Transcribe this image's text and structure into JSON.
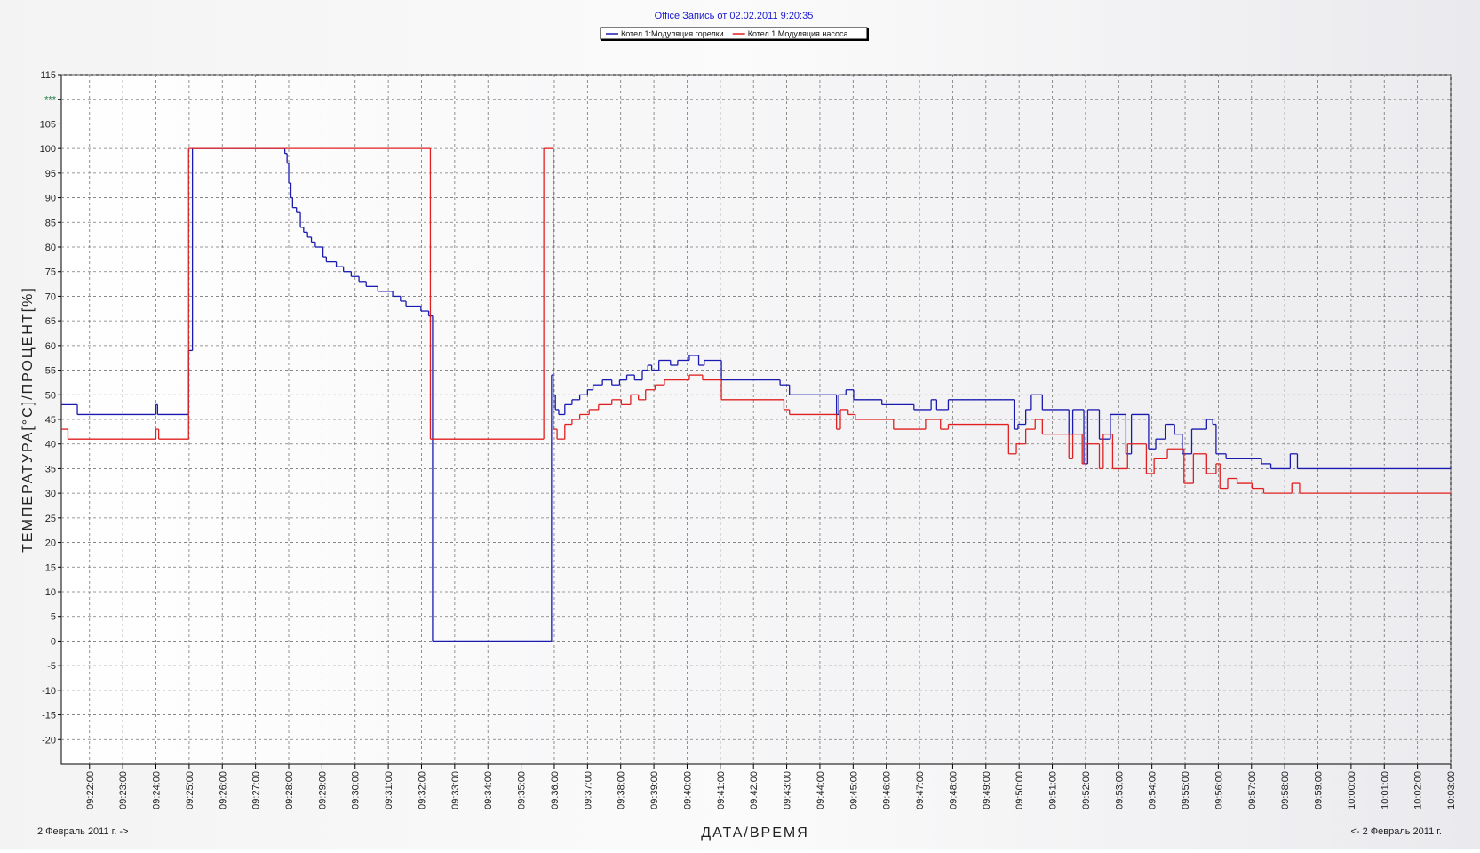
{
  "chart_data": {
    "type": "step-line",
    "title": "Office Запись от 02.02.2011 9:20:35",
    "y_label": "ТЕМПЕРАТУРА[°C]/ПРОЦЕНТ[%]",
    "x_label": "ДАТА/ВРЕМЯ",
    "date_left": "2 Февраль 2011 г. ->",
    "date_right": "<- 2 Февраль 2011 г.",
    "grid": true,
    "legend": "top",
    "xlim": [
      "09:21:09",
      "10:03:00"
    ],
    "xticks": [
      "09:22:00",
      "09:23:00",
      "09:24:00",
      "09:25:00",
      "09:26:00",
      "09:27:00",
      "09:28:00",
      "09:29:00",
      "09:30:00",
      "09:31:00",
      "09:32:00",
      "09:33:00",
      "09:34:00",
      "09:35:00",
      "09:36:00",
      "09:37:00",
      "09:38:00",
      "09:39:00",
      "09:40:00",
      "09:41:00",
      "09:42:00",
      "09:43:00",
      "09:44:00",
      "09:45:00",
      "09:46:00",
      "09:47:00",
      "09:48:00",
      "09:49:00",
      "09:50:00",
      "09:51:00",
      "09:52:00",
      "09:53:00",
      "09:54:00",
      "09:55:00",
      "09:56:00",
      "09:57:00",
      "09:58:00",
      "09:59:00",
      "10:00:00",
      "10:01:00",
      "10:02:00",
      "10:03:00"
    ],
    "ylim": [
      -25,
      115
    ],
    "yticks": [
      -20,
      -15,
      -10,
      -5,
      0,
      5,
      10,
      15,
      20,
      25,
      30,
      35,
      40,
      45,
      50,
      55,
      60,
      65,
      70,
      75,
      80,
      85,
      90,
      95,
      100,
      105,
      {
        "value": 110,
        "label": "***"
      },
      115
    ],
    "series": [
      {
        "name": "Котел 1:Модуляция горелки",
        "color": "#1a1ab0",
        "x": [
          "09:21:09",
          "09:21:38",
          "09:24:00",
          "09:24:03",
          "09:24:59",
          "09:25:06",
          "09:27:53",
          "09:27:57",
          "09:28:00",
          "09:28:04",
          "09:28:07",
          "09:28:14",
          "09:28:21",
          "09:28:27",
          "09:28:34",
          "09:28:41",
          "09:28:48",
          "09:29:02",
          "09:29:08",
          "09:29:26",
          "09:29:39",
          "09:29:53",
          "09:30:07",
          "09:30:20",
          "09:30:41",
          "09:31:08",
          "09:31:22",
          "09:31:32",
          "09:31:59",
          "09:32:13",
          "09:32:20",
          "09:35:55",
          "09:35:58",
          "09:36:02",
          "09:36:08",
          "09:36:19",
          "09:36:32",
          "09:36:46",
          "09:37:00",
          "09:37:10",
          "09:37:27",
          "09:37:44",
          "09:37:58",
          "09:38:11",
          "09:38:25",
          "09:38:39",
          "09:38:49",
          "09:38:56",
          "09:39:09",
          "09:39:30",
          "09:39:43",
          "09:40:04",
          "09:40:21",
          "09:40:31",
          "09:41:02",
          "09:42:48",
          "09:43:05",
          "09:44:30",
          "09:44:34",
          "09:44:47",
          "09:45:01",
          "09:45:52",
          "09:46:50",
          "09:47:21",
          "09:47:31",
          "09:47:52",
          "09:49:51",
          "09:49:58",
          "09:50:12",
          "09:50:22",
          "09:50:42",
          "09:51:30",
          "09:51:37",
          "09:51:57",
          "09:52:04",
          "09:52:25",
          "09:52:45",
          "09:53:13",
          "09:53:23",
          "09:53:54",
          "09:54:07",
          "09:54:24",
          "09:54:41",
          "09:54:55",
          "09:55:12",
          "09:55:39",
          "09:55:50",
          "09:55:56",
          "09:56:14",
          "09:57:18",
          "09:57:35",
          "09:58:10",
          "09:58:23",
          "10:03:00"
        ],
        "values": [
          48,
          46,
          48,
          46,
          59,
          100,
          99,
          97,
          93,
          90,
          88,
          87,
          84,
          83,
          82,
          81,
          80,
          78,
          77,
          76,
          75,
          74,
          73,
          72,
          71,
          70,
          69,
          68,
          67,
          66,
          0,
          54,
          50,
          47,
          46,
          48,
          49,
          50,
          51,
          52,
          53,
          52,
          53,
          54,
          53,
          55,
          56,
          55,
          57,
          56,
          57,
          58,
          56,
          57,
          53,
          52,
          50,
          46,
          50,
          51,
          49,
          48,
          47,
          49,
          47,
          49,
          43,
          44,
          47,
          50,
          47,
          42,
          47,
          36,
          47,
          41,
          46,
          38,
          46,
          39,
          41,
          44,
          42,
          38,
          43,
          45,
          44,
          38,
          37,
          36,
          35,
          38,
          35,
          35
        ]
      },
      {
        "name": "Котел 1 Модуляция насоса",
        "color": "#e02020",
        "x": [
          "09:21:09",
          "09:21:21",
          "09:24:00",
          "09:24:05",
          "09:24:59",
          "09:32:16",
          "09:35:41",
          "09:35:58",
          "09:36:05",
          "09:36:19",
          "09:36:32",
          "09:36:46",
          "09:37:03",
          "09:37:20",
          "09:37:44",
          "09:38:01",
          "09:38:18",
          "09:38:32",
          "09:38:45",
          "09:39:02",
          "09:39:19",
          "09:40:04",
          "09:40:28",
          "09:41:02",
          "09:42:55",
          "09:43:05",
          "09:44:30",
          "09:44:37",
          "09:44:51",
          "09:45:04",
          "09:46:13",
          "09:47:11",
          "09:47:38",
          "09:47:52",
          "09:49:41",
          "09:49:55",
          "09:50:12",
          "09:50:29",
          "09:50:42",
          "09:51:30",
          "09:51:37",
          "09:51:54",
          "09:52:01",
          "09:52:25",
          "09:52:32",
          "09:52:49",
          "09:53:16",
          "09:53:50",
          "09:54:04",
          "09:54:28",
          "09:54:58",
          "09:55:15",
          "09:55:39",
          "09:55:56",
          "09:56:03",
          "09:56:17",
          "09:56:34",
          "09:57:01",
          "09:57:22",
          "09:58:13",
          "09:58:27",
          "10:03:00"
        ],
        "values": [
          43,
          41,
          43,
          41,
          100,
          41,
          100,
          43,
          41,
          44,
          45,
          46,
          47,
          48,
          49,
          48,
          50,
          49,
          51,
          52,
          53,
          54,
          53,
          49,
          47,
          46,
          43,
          47,
          46,
          45,
          43,
          45,
          43,
          44,
          38,
          40,
          43,
          45,
          42,
          37,
          42,
          36,
          40,
          35,
          42,
          35,
          40,
          34,
          37,
          39,
          32,
          38,
          34,
          36,
          31,
          33,
          32,
          31,
          30,
          32,
          30,
          30
        ]
      }
    ]
  }
}
